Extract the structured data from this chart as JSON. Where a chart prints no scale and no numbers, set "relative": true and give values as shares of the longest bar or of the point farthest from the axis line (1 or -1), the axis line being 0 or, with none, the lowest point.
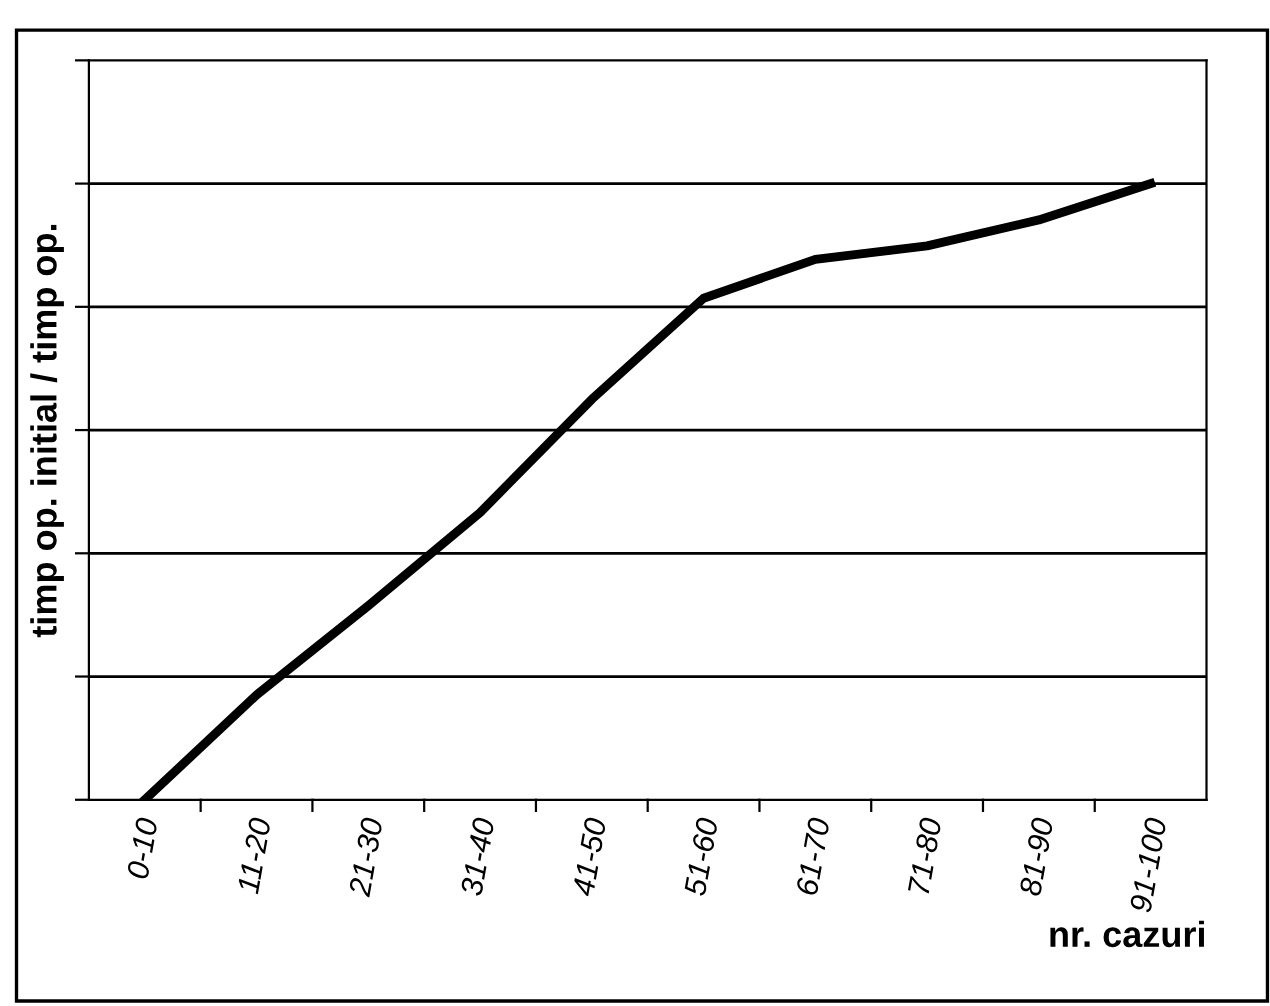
{
  "chart_data": {
    "type": "line",
    "relative": true,
    "xlabel": "nr. cazuri",
    "ylabel": "timp op. initial / timp op.",
    "categories": [
      "0-10",
      "11-20",
      "21-30",
      "31-40",
      "41-50",
      "51-60",
      "61-70",
      "71-80",
      "81-90",
      "91-100"
    ],
    "series": [
      {
        "color": "#000000",
        "values": [
          0,
          0.17,
          0.315,
          0.466,
          0.65,
          0.814,
          0.877,
          0.899,
          0.941,
          1.0
        ]
      }
    ],
    "grid": "y",
    "legend": false,
    "marker": "none",
    "line_style": "solid"
  }
}
